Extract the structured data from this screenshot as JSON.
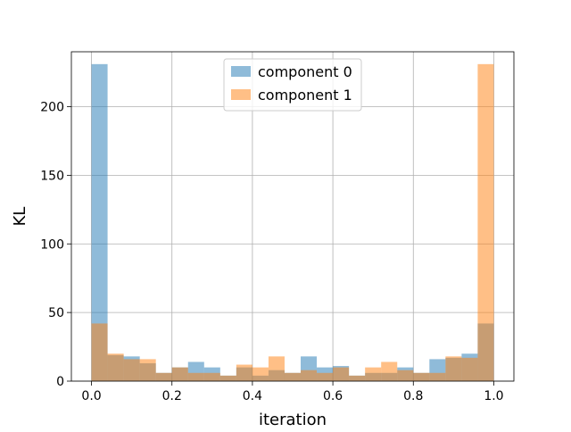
{
  "chart_data": {
    "type": "bar",
    "title": "",
    "xlabel": "iteration",
    "ylabel": "KL",
    "xlim": [
      -0.05,
      1.05
    ],
    "ylim": [
      0,
      240
    ],
    "bin_width": 0.04,
    "bin_starts": [
      0.0,
      0.04,
      0.08,
      0.12,
      0.16,
      0.2,
      0.24,
      0.28,
      0.32,
      0.36,
      0.4,
      0.44,
      0.48,
      0.52,
      0.56,
      0.6,
      0.64,
      0.68,
      0.72,
      0.76,
      0.8,
      0.84,
      0.88,
      0.92,
      0.96
    ],
    "x_ticks": [
      "0.0",
      "0.2",
      "0.4",
      "0.6",
      "0.8",
      "1.0"
    ],
    "y_ticks": [
      "0",
      "50",
      "100",
      "150",
      "200"
    ],
    "grid": true,
    "legend_position": "top-center",
    "series": [
      {
        "name": "component 0",
        "color": "#1f77b4",
        "values": [
          231,
          19,
          18,
          13,
          6,
          10,
          14,
          10,
          4,
          10,
          4,
          8,
          6,
          18,
          10,
          11,
          4,
          6,
          6,
          10,
          6,
          16,
          17,
          20,
          42
        ]
      },
      {
        "name": "component 1",
        "color": "#ff7f0e",
        "values": [
          42,
          20,
          16,
          16,
          6,
          10,
          6,
          6,
          4,
          12,
          10,
          18,
          6,
          8,
          6,
          10,
          4,
          10,
          14,
          8,
          6,
          6,
          18,
          17,
          231
        ]
      }
    ]
  }
}
